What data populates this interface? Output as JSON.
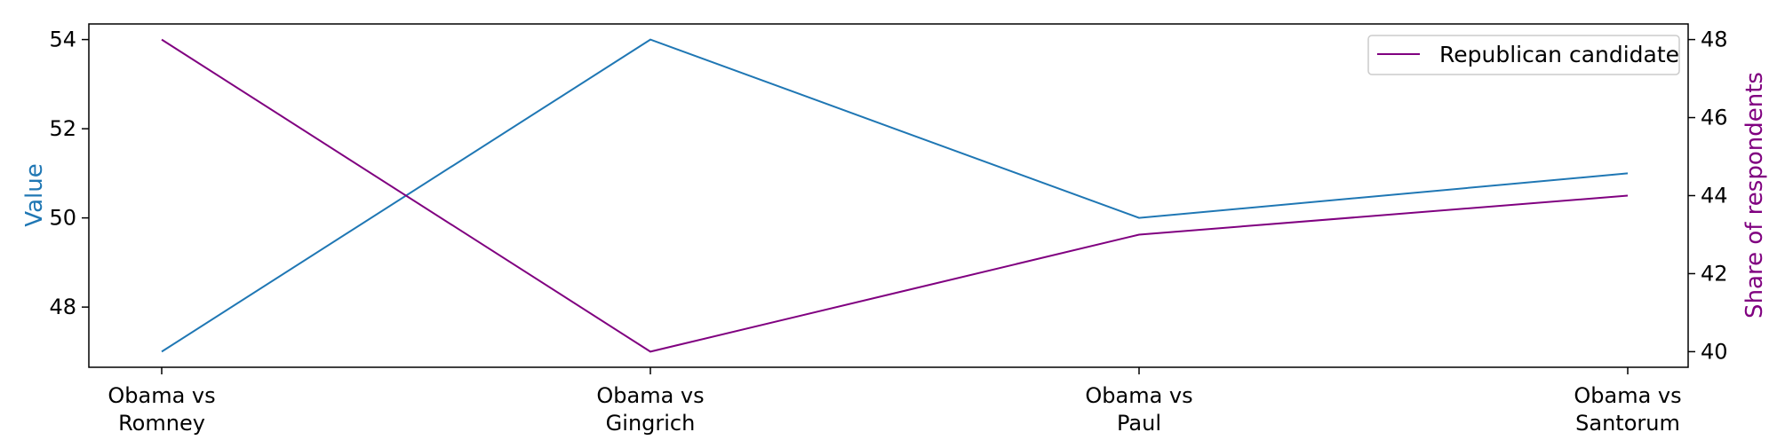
{
  "chart_data": {
    "type": "line",
    "categories": [
      [
        "Obama vs",
        "Romney"
      ],
      [
        "Obama vs",
        "Gingrich"
      ],
      [
        "Obama vs",
        "Paul"
      ],
      [
        "Obama vs",
        "Santorum"
      ]
    ],
    "series": [
      {
        "axis": "left",
        "color": "#1f77b4",
        "values": [
          47,
          54,
          50,
          51
        ]
      },
      {
        "name": "Republican candidate",
        "axis": "right",
        "color": "#800080",
        "values": [
          48,
          40,
          43,
          44
        ]
      }
    ],
    "y_left": {
      "label": "Value",
      "label_color": "#1f77b4",
      "ticks": [
        48,
        50,
        52,
        54
      ],
      "ylim": [
        46.65,
        54.35
      ]
    },
    "y_right": {
      "label": "Share of respondents",
      "label_color": "#800080",
      "ticks": [
        40,
        42,
        44,
        46,
        48
      ],
      "ylim": [
        39.6,
        48.4
      ]
    },
    "grid": false,
    "legend": {
      "position": "top-right",
      "entries": [
        "Republican candidate"
      ]
    }
  }
}
